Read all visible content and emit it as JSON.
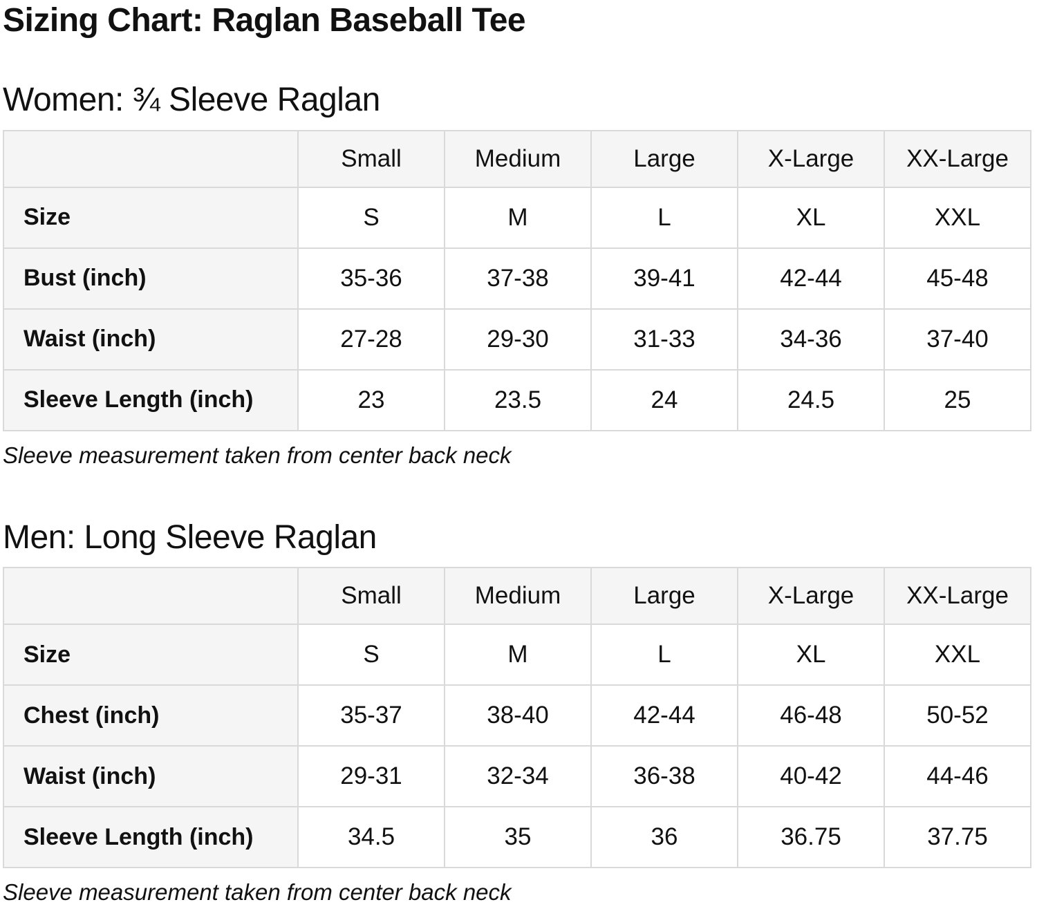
{
  "page": {
    "title": "Sizing Chart: Raglan Baseball Tee"
  },
  "colors": {
    "cell_background": "#f5f5f5",
    "table_border": "#d9d9d9",
    "text": "#111111",
    "page_background": "#ffffff"
  },
  "women": {
    "heading": "Women: ¾ Sleeve Raglan",
    "note": "Sleeve measurement taken from center back neck",
    "table": {
      "columns": [
        "",
        "Small",
        "Medium",
        "Large",
        "X-Large",
        "XX-Large"
      ],
      "rows": [
        {
          "label": "Size",
          "values": [
            "S",
            "M",
            "L",
            "XL",
            "XXL"
          ]
        },
        {
          "label": "Bust (inch)",
          "values": [
            "35-36",
            "37-38",
            "39-41",
            "42-44",
            "45-48"
          ]
        },
        {
          "label": "Waist (inch)",
          "values": [
            "27-28",
            "29-30",
            "31-33",
            "34-36",
            "37-40"
          ]
        },
        {
          "label": "Sleeve Length (inch)",
          "values": [
            "23",
            "23.5",
            "24",
            "24.5",
            "25"
          ]
        }
      ]
    }
  },
  "men": {
    "heading": "Men: Long Sleeve Raglan",
    "note": "Sleeve measurement taken from center back neck",
    "table": {
      "columns": [
        "",
        "Small",
        "Medium",
        "Large",
        "X-Large",
        "XX-Large"
      ],
      "rows": [
        {
          "label": "Size",
          "values": [
            "S",
            "M",
            "L",
            "XL",
            "XXL"
          ]
        },
        {
          "label": "Chest (inch)",
          "values": [
            "35-37",
            "38-40",
            "42-44",
            "46-48",
            "50-52"
          ]
        },
        {
          "label": "Waist (inch)",
          "values": [
            "29-31",
            "32-34",
            "36-38",
            "40-42",
            "44-46"
          ]
        },
        {
          "label": "Sleeve Length (inch)",
          "values": [
            "34.5",
            "35",
            "36",
            "36.75",
            "37.75"
          ]
        }
      ]
    }
  }
}
